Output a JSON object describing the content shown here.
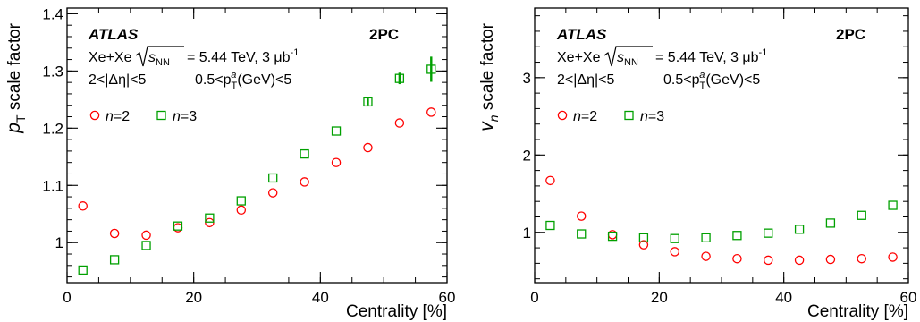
{
  "chart_data": [
    {
      "type": "scatter",
      "xlabel": "Centrality [%]",
      "ylabel_main": "p",
      "ylabel_sub": "T",
      "ylabel_rest": " scale factor",
      "xlim": [
        0,
        60
      ],
      "ylim": [
        0.93,
        1.41
      ],
      "x_ticks": [
        0,
        20,
        40,
        60
      ],
      "y_ticks": [
        1,
        1.1,
        1.2,
        1.3,
        1.4
      ],
      "y_tick_labels": [
        "1",
        "1.1",
        "1.2",
        "1.3",
        "1.4"
      ],
      "annotations": {
        "atlas": "ATLAS",
        "tag": "2PC",
        "system": "Xe+Xe",
        "energy": "= 5.44 TeV, 3 μb",
        "lumi_exp": "-1",
        "eta": "2<|Δη|<5",
        "pt_pre": "0.5<p",
        "pt_post": "(GeV)<5"
      },
      "series": [
        {
          "name": "n=2",
          "marker": "circle",
          "color": "#ff0000",
          "x": [
            2.5,
            7.5,
            12.5,
            17.5,
            22.5,
            27.5,
            32.5,
            37.5,
            42.5,
            47.5,
            52.5,
            57.5
          ],
          "y": [
            1.064,
            1.016,
            1.013,
            1.026,
            1.035,
            1.057,
            1.087,
            1.106,
            1.14,
            1.166,
            1.209,
            1.228
          ],
          "err": [
            0,
            0,
            0,
            0,
            0,
            0,
            0,
            0,
            0,
            0,
            0,
            0
          ]
        },
        {
          "name": "n=3",
          "marker": "square",
          "color": "#00a000",
          "x": [
            2.5,
            7.5,
            12.5,
            17.5,
            22.5,
            27.5,
            32.5,
            37.5,
            42.5,
            47.5,
            52.5,
            57.5
          ],
          "y": [
            0.952,
            0.97,
            0.995,
            1.029,
            1.043,
            1.073,
            1.113,
            1.155,
            1.195,
            1.246,
            1.287,
            1.303
          ],
          "err": [
            0,
            0,
            0,
            0,
            0,
            0,
            0,
            0,
            0,
            0.006,
            0.01,
            0.022
          ]
        }
      ]
    },
    {
      "type": "scatter",
      "xlabel": "Centrality [%]",
      "ylabel_main": "v",
      "ylabel_sub": "n",
      "ylabel_rest": " scale factor",
      "xlim": [
        0,
        60
      ],
      "ylim": [
        0.35,
        3.9
      ],
      "x_ticks": [
        0,
        20,
        40,
        60
      ],
      "y_ticks": [
        1,
        2,
        3
      ],
      "y_tick_labels": [
        "1",
        "2",
        "3"
      ],
      "annotations": {
        "atlas": "ATLAS",
        "tag": "2PC",
        "system": "Xe+Xe",
        "energy": "= 5.44 TeV, 3 μb",
        "lumi_exp": "-1",
        "eta": "2<|Δη|<5",
        "pt_pre": "0.5<p",
        "pt_post": "(GeV)<5"
      },
      "series": [
        {
          "name": "n=2",
          "marker": "circle",
          "color": "#ff0000",
          "x": [
            2.5,
            7.5,
            12.5,
            17.5,
            22.5,
            27.5,
            32.5,
            37.5,
            42.5,
            47.5,
            52.5,
            57.5
          ],
          "y": [
            1.67,
            1.21,
            0.97,
            0.84,
            0.75,
            0.69,
            0.66,
            0.64,
            0.64,
            0.65,
            0.66,
            0.68
          ],
          "err": [
            0,
            0,
            0,
            0,
            0,
            0,
            0,
            0,
            0,
            0,
            0,
            0
          ]
        },
        {
          "name": "n=3",
          "marker": "square",
          "color": "#00a000",
          "x": [
            2.5,
            7.5,
            12.5,
            17.5,
            22.5,
            27.5,
            32.5,
            37.5,
            42.5,
            47.5,
            52.5,
            57.5
          ],
          "y": [
            1.09,
            0.98,
            0.95,
            0.93,
            0.92,
            0.93,
            0.96,
            0.99,
            1.04,
            1.12,
            1.22,
            1.35
          ],
          "err": [
            0,
            0,
            0,
            0,
            0,
            0,
            0,
            0,
            0,
            0,
            0,
            0
          ]
        }
      ]
    }
  ]
}
